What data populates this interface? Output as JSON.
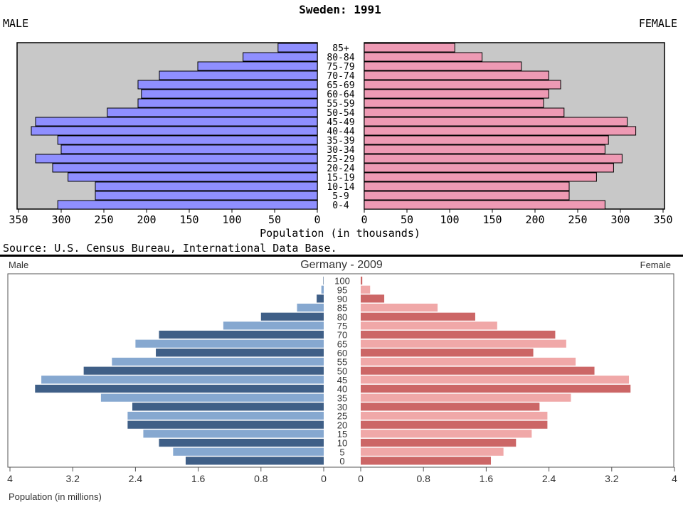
{
  "chart_data": [
    {
      "type": "bar",
      "title": "Sweden: 1991",
      "left_label": "MALE",
      "right_label": "FEMALE",
      "xlabel": "Population (in thousands)",
      "source": "Source: U.S. Census Bureau, International Data Base.",
      "xlim": [
        0,
        350
      ],
      "ticks": [
        "350",
        "300",
        "250",
        "200",
        "150",
        "100",
        "50",
        "0"
      ],
      "ticks_right": [
        "0",
        "50",
        "100",
        "150",
        "200",
        "250",
        "300",
        "350"
      ],
      "tick_values": [
        350,
        300,
        250,
        200,
        150,
        100,
        50,
        0
      ],
      "categories": [
        "0-4",
        "5-9",
        "10-14",
        "15-19",
        "20-24",
        "25-29",
        "30-34",
        "35-39",
        "40-44",
        "45-49",
        "50-54",
        "55-59",
        "60-64",
        "65-69",
        "70-74",
        "75-79",
        "80-84",
        "85+"
      ],
      "series": [
        {
          "name": "MALE",
          "values": [
            304,
            260,
            260,
            292,
            310,
            330,
            300,
            304,
            335,
            330,
            246,
            210,
            206,
            210,
            185,
            140,
            87,
            46
          ]
        },
        {
          "name": "FEMALE",
          "values": [
            282,
            240,
            240,
            272,
            292,
            302,
            282,
            286,
            318,
            308,
            234,
            210,
            216,
            230,
            216,
            184,
            138,
            106
          ]
        }
      ],
      "colors": {
        "male": "#8f8fff",
        "female": "#ee9ab4",
        "plot_bg": "#c8c8c8"
      }
    },
    {
      "type": "bar",
      "title": "Germany - 2009",
      "left_label": "Male",
      "right_label": "Female",
      "xlabel": "Population (in millions)",
      "xlim": [
        0,
        4
      ],
      "ticks": [
        "4",
        "3.2",
        "2.4",
        "1.6",
        "0.8",
        "0"
      ],
      "ticks_right": [
        "0",
        "0.8",
        "1.6",
        "2.4",
        "3.2",
        "4"
      ],
      "tick_values": [
        4,
        3.2,
        2.4,
        1.6,
        0.8,
        0
      ],
      "categories": [
        "0",
        "5",
        "10",
        "15",
        "20",
        "25",
        "30",
        "35",
        "40",
        "45",
        "50",
        "55",
        "60",
        "65",
        "70",
        "75",
        "80",
        "85",
        "90",
        "95",
        "100"
      ],
      "series": [
        {
          "name": "Male",
          "values": [
            1.76,
            1.92,
            2.1,
            2.3,
            2.5,
            2.5,
            2.44,
            2.84,
            3.68,
            3.6,
            3.06,
            2.7,
            2.14,
            2.4,
            2.1,
            1.28,
            0.8,
            0.34,
            0.09,
            0.03,
            0.005
          ]
        },
        {
          "name": "Female",
          "values": [
            1.66,
            1.82,
            1.98,
            2.18,
            2.38,
            2.38,
            2.28,
            2.68,
            3.44,
            3.42,
            2.98,
            2.74,
            2.2,
            2.62,
            2.48,
            1.74,
            1.46,
            0.98,
            0.3,
            0.12,
            0.02
          ]
        }
      ],
      "colors": {
        "male_dark": "#3f5f87",
        "male_light": "#86a8d0",
        "female_dark": "#cc6666",
        "female_light": "#f0a8a8",
        "plot_bg": "#ffffff"
      }
    }
  ]
}
